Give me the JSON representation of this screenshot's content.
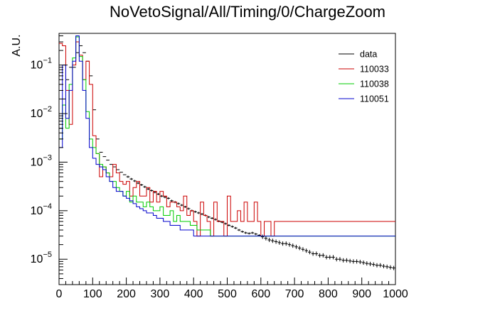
{
  "chart_data": {
    "type": "histogram",
    "title": "NoVetoSignal/All/Timing/0/ChargeZoom",
    "xlabel": "",
    "ylabel": "A.U.",
    "xlim": [
      0,
      1000
    ],
    "ylim": [
      3e-06,
      0.45
    ],
    "yscale": "log",
    "grid": false,
    "legend_position": "top-right",
    "bin_width": 10,
    "x_ticks": [
      {
        "value": 0,
        "label": "0"
      },
      {
        "value": 100,
        "label": "100"
      },
      {
        "value": 200,
        "label": "200"
      },
      {
        "value": 300,
        "label": "300"
      },
      {
        "value": 400,
        "label": "400"
      },
      {
        "value": 500,
        "label": "500"
      },
      {
        "value": 600,
        "label": "600"
      },
      {
        "value": 700,
        "label": "700"
      },
      {
        "value": 800,
        "label": "800"
      },
      {
        "value": 900,
        "label": "900"
      },
      {
        "value": 1000,
        "label": "1000"
      }
    ],
    "y_ticks": [
      {
        "value": 1e-05,
        "base": "10",
        "exp": "−5"
      },
      {
        "value": 0.0001,
        "base": "10",
        "exp": "−4"
      },
      {
        "value": 0.001,
        "base": "10",
        "exp": "−3"
      },
      {
        "value": 0.01,
        "base": "10",
        "exp": "−2"
      },
      {
        "value": 0.1,
        "base": "10",
        "exp": "−1"
      }
    ],
    "series": [
      {
        "name": "data",
        "style": "points",
        "color": "#000000",
        "values": [
          0.005,
          0.02,
          0.05,
          0.09,
          0.09,
          0.18,
          0.25,
          0.18,
          0.12,
          0.06,
          0.012,
          0.003,
          0.0016,
          0.0013,
          0.0011,
          0.0009,
          0.0008,
          0.0007,
          0.00062,
          0.00055,
          0.0005,
          0.00045,
          0.00041,
          0.00037,
          0.00034,
          0.00031,
          0.00028,
          0.00026,
          0.00024,
          0.00022,
          0.0002,
          0.00019,
          0.00018,
          0.00016,
          0.00015,
          0.00014,
          0.00013,
          0.00012,
          0.00011,
          0.0001,
          9.5e-05,
          9e-05,
          8.5e-05,
          8e-05,
          7.4e-05,
          7e-05,
          6.6e-05,
          6.1e-05,
          5.8e-05,
          5.4e-05,
          5e-05,
          4.7e-05,
          4.4e-05,
          4e-05,
          3.7e-05,
          3.5e-05,
          3.4e-05,
          3.5e-05,
          3.3e-05,
          3.1e-05,
          2.9e-05,
          2.7e-05,
          2.5e-05,
          2.4e-05,
          2.3e-05,
          2.2e-05,
          2.1e-05,
          2.1e-05,
          2e-05,
          1.9e-05,
          1.8e-05,
          1.7e-05,
          1.6e-05,
          1.5e-05,
          1.4e-05,
          1.3e-05,
          1.3e-05,
          1.2e-05,
          1.2e-05,
          1.1e-05,
          1.1e-05,
          1.1e-05,
          1e-05,
          1e-05,
          9.5e-06,
          9.5e-06,
          9.2e-06,
          9e-06,
          9e-06,
          8.8e-06,
          8.5e-06,
          8.2e-06,
          8e-06,
          7.8e-06,
          7.5e-06,
          7.5e-06,
          7.2e-06,
          7e-06,
          6.8e-06,
          6.6e-06
        ]
      },
      {
        "name": "110033",
        "style": "step",
        "color": "#cc0000",
        "values": [
          0.28,
          0.25,
          0.03,
          0.006,
          0.1,
          0.3,
          0.16,
          0.05,
          0.12,
          0.04,
          0.0035,
          0.0015,
          0.0005,
          0.0008,
          0.0006,
          0.0005,
          0.0009,
          0.0006,
          0.0004,
          0.00035,
          0.0004,
          0.0002,
          0.0003,
          0.0004,
          0.0002,
          0.0002,
          0.0003,
          0.00015,
          0.00025,
          0.00015,
          0.00025,
          0.0002,
          0.00012,
          0.00015,
          0.00015,
          0.00012,
          0.0001,
          0.0002,
          8e-05,
          0.0001,
          6e-05,
          3e-05,
          0.00015,
          8e-05,
          6e-05,
          3e-05,
          0.00015,
          6e-05,
          6e-05,
          3e-05,
          0.0002,
          6e-05,
          6e-05,
          0.0001,
          6e-05,
          0.00015,
          6e-05,
          6e-05,
          0.00015,
          6e-05,
          3e-05,
          6e-05,
          6e-05,
          3e-05,
          6e-05,
          6e-05,
          6e-05,
          6e-05,
          6e-05,
          6e-05,
          6e-05,
          6e-05,
          6e-05,
          6e-05,
          6e-05,
          6e-05,
          6e-05,
          6e-05,
          6e-05,
          6e-05,
          6e-05,
          6e-05,
          6e-05,
          6e-05,
          6e-05,
          6e-05,
          6e-05,
          6e-05,
          6e-05,
          6e-05,
          6e-05,
          6e-05,
          6e-05,
          6e-05,
          6e-05,
          6e-05,
          6e-05,
          6e-05,
          6e-05,
          6e-05
        ]
      },
      {
        "name": "110038",
        "style": "step",
        "color": "#00cc00",
        "values": [
          0.003,
          0.015,
          0.005,
          0.04,
          0.14,
          0.38,
          0.15,
          0.05,
          0.011,
          0.003,
          0.002,
          0.0015,
          0.0009,
          0.0008,
          0.0006,
          0.0004,
          0.0004,
          0.0003,
          0.00025,
          0.0002,
          0.00025,
          0.00015,
          0.0002,
          0.00015,
          0.00015,
          0.00012,
          0.00015,
          0.00012,
          0.0001,
          0.0001,
          0.00012,
          8e-05,
          8e-05,
          0.0001,
          6e-05,
          8e-05,
          6e-05,
          6e-05,
          6e-05,
          5e-05,
          5e-05,
          4e-05,
          4e-05,
          4e-05,
          4e-05,
          3e-05,
          3e-05,
          3e-05,
          3e-05,
          3e-05,
          3e-05,
          3e-05,
          3e-05,
          3e-05,
          3e-05,
          3e-05,
          3e-05,
          3e-05,
          3e-05,
          3e-05,
          3e-05,
          3e-05,
          3e-05,
          3e-05,
          3e-05,
          3e-05,
          3e-05,
          3e-05,
          3e-05,
          3e-05,
          3e-05,
          3e-05,
          3e-05,
          3e-05,
          3e-05,
          3e-05,
          3e-05,
          3e-05,
          3e-05,
          3e-05,
          3e-05,
          3e-05,
          3e-05,
          3e-05,
          3e-05,
          3e-05,
          3e-05,
          3e-05,
          3e-05,
          3e-05,
          3e-05,
          3e-05,
          3e-05,
          3e-05,
          3e-05,
          3e-05,
          3e-05,
          3e-05,
          3e-05,
          3e-05
        ]
      },
      {
        "name": "110051",
        "style": "step",
        "color": "#0000cc",
        "values": [
          0.002,
          0.1,
          0.008,
          0.03,
          0.12,
          0.4,
          0.12,
          0.03,
          0.008,
          0.002,
          0.0012,
          0.0009,
          0.0008,
          0.0007,
          0.0005,
          0.0004,
          0.0003,
          0.00025,
          0.00025,
          0.0002,
          0.00018,
          0.00016,
          0.00014,
          0.00012,
          0.00011,
          0.0001,
          9e-05,
          9e-05,
          8e-05,
          7e-05,
          7e-05,
          6e-05,
          6e-05,
          5e-05,
          5e-05,
          5e-05,
          4e-05,
          4e-05,
          4e-05,
          4e-05,
          3e-05,
          3e-05,
          3e-05,
          3e-05,
          3e-05,
          3e-05,
          3e-05,
          3e-05,
          3e-05,
          3e-05,
          3e-05,
          3e-05,
          3e-05,
          3e-05,
          3e-05,
          3e-05,
          3e-05,
          3e-05,
          3e-05,
          3e-05,
          3e-05,
          3e-05,
          3e-05,
          3e-05,
          3e-05,
          3e-05,
          3e-05,
          3e-05,
          3e-05,
          3e-05,
          3e-05,
          3e-05,
          3e-05,
          3e-05,
          3e-05,
          3e-05,
          3e-05,
          3e-05,
          3e-05,
          3e-05,
          3e-05,
          3e-05,
          3e-05,
          3e-05,
          3e-05,
          3e-05,
          3e-05,
          3e-05,
          3e-05,
          3e-05,
          3e-05,
          3e-05,
          3e-05,
          3e-05,
          3e-05,
          3e-05,
          3e-05,
          3e-05,
          3e-05,
          3e-05
        ]
      }
    ]
  }
}
